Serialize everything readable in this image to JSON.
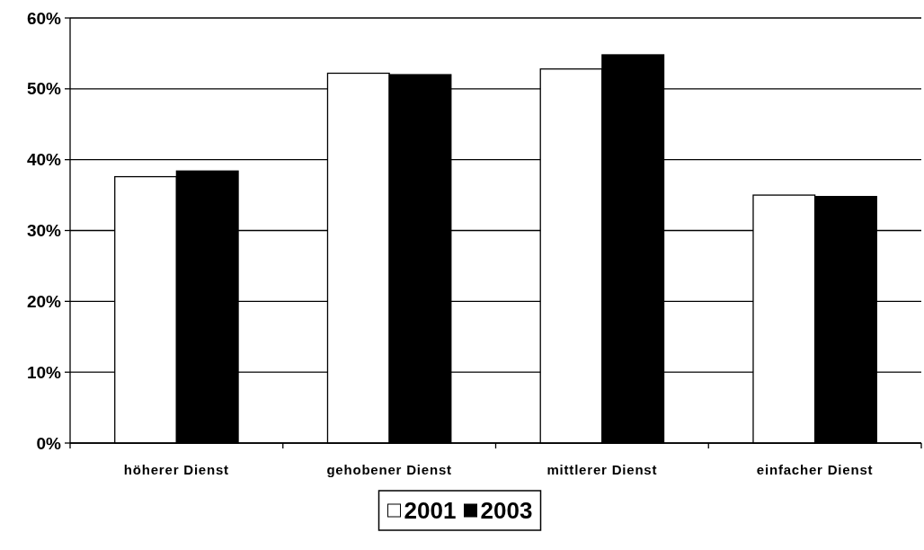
{
  "chart_data": {
    "type": "bar",
    "categories": [
      "höherer Dienst",
      "gehobener Dienst",
      "mittlerer Dienst",
      "einfacher Dienst"
    ],
    "series": [
      {
        "name": "2001",
        "color": "#ffffff",
        "values": [
          37.6,
          52.2,
          52.8,
          35.0
        ]
      },
      {
        "name": "2003",
        "color": "#000000",
        "values": [
          38.4,
          52.0,
          54.8,
          34.8
        ]
      }
    ],
    "ylim": [
      0,
      60
    ],
    "yticks": [
      {
        "value": 0,
        "label": "0%"
      },
      {
        "value": 10,
        "label": "10%"
      },
      {
        "value": 20,
        "label": "20%"
      },
      {
        "value": 30,
        "label": "30%"
      },
      {
        "value": 40,
        "label": "40%"
      },
      {
        "value": 50,
        "label": "50%"
      },
      {
        "value": 60,
        "label": "60%"
      }
    ],
    "grid": "y",
    "legend": "bottom"
  }
}
